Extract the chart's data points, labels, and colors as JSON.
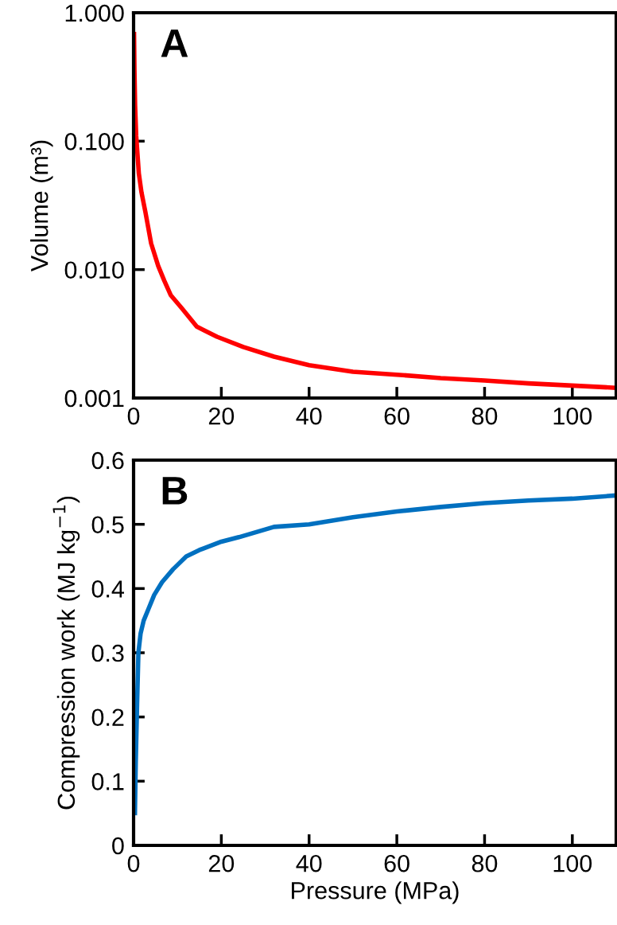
{
  "chart_data": [
    {
      "type": "line",
      "ylabel": "Volume (m³)",
      "log": "y",
      "annotations": [
        "A"
      ],
      "xlim": [
        0,
        110
      ],
      "xticks": [
        0,
        20,
        40,
        60,
        80,
        100
      ],
      "ylim": [
        0.001,
        1
      ],
      "yticks": [
        {
          "value": 0.001,
          "label": "0.001"
        },
        {
          "value": 0.01,
          "label": "0.010"
        },
        {
          "value": 0.1,
          "label": "0.100"
        },
        {
          "value": 1,
          "label": "1.000"
        }
      ],
      "grid": false,
      "legend": false,
      "series": [
        {
          "color": "#ff0000",
          "x": [
            0.1,
            0.2,
            0.35,
            0.6,
            1.2,
            1.8,
            2.7,
            4,
            5.6,
            7,
            8.5,
            11,
            14.4,
            19,
            25,
            32,
            40,
            50,
            60,
            70,
            80,
            90,
            100,
            110
          ],
          "values": [
            0.71,
            0.36,
            0.19,
            0.11,
            0.056,
            0.04,
            0.028,
            0.016,
            0.0107,
            0.0082,
            0.0063,
            0.005,
            0.0036,
            0.003,
            0.0025,
            0.0021,
            0.0018,
            0.0016,
            0.00152,
            0.00143,
            0.00137,
            0.0013,
            0.00125,
            0.0012
          ]
        }
      ]
    },
    {
      "type": "line",
      "xlabel": "Pressure (MPa)",
      "ylabel": "Compression work (MJ kg$^{−1}$)",
      "annotations": [
        "B"
      ],
      "xlim": [
        0,
        110
      ],
      "xticks": [
        0,
        20,
        40,
        60,
        80,
        100
      ],
      "ylim": [
        0,
        0.6
      ],
      "yticks": [
        0,
        0.1,
        0.2,
        0.3,
        0.4,
        0.5,
        0.6
      ],
      "grid": false,
      "legend": false,
      "series": [
        {
          "color": "#0070c0",
          "x": [
            0.3,
            0.5,
            0.8,
            1.1,
            1.6,
            2.3,
            3.5,
            4.7,
            6.5,
            9,
            12,
            15,
            20,
            24,
            32,
            40,
            50,
            60,
            70,
            80,
            90,
            100,
            110
          ],
          "values": [
            0.047,
            0.13,
            0.22,
            0.3,
            0.33,
            0.35,
            0.37,
            0.39,
            0.41,
            0.43,
            0.45,
            0.46,
            0.473,
            0.48,
            0.496,
            0.5,
            0.511,
            0.52,
            0.527,
            0.533,
            0.537,
            0.54,
            0.545
          ]
        }
      ]
    }
  ]
}
